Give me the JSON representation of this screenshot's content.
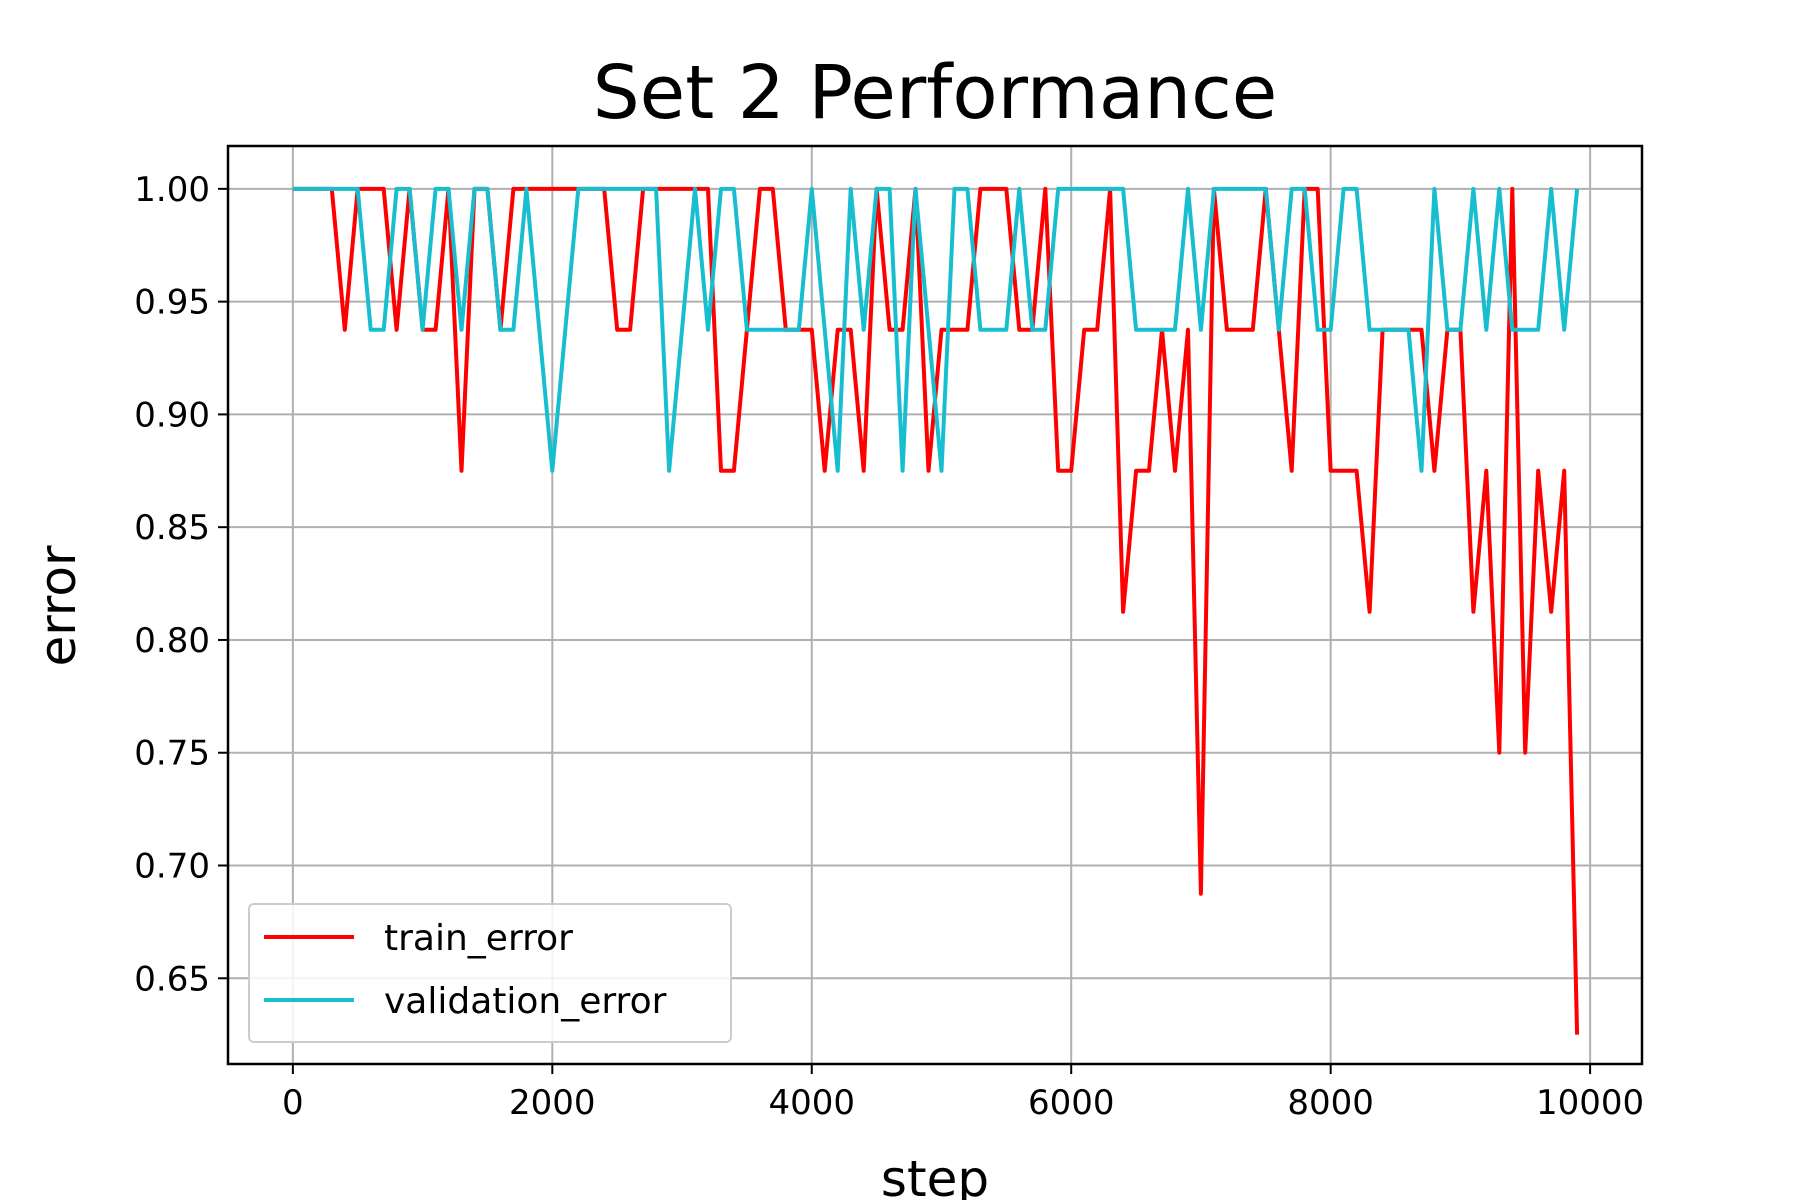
{
  "chart_data": {
    "type": "line",
    "title": "Set 2 Performance",
    "xlabel": "step",
    "ylabel": "error",
    "xlim": [
      -500,
      10400
    ],
    "ylim": [
      0.612,
      1.019
    ],
    "xticks": [
      0,
      2000,
      4000,
      6000,
      8000,
      10000
    ],
    "xtick_labels": [
      "0",
      "2000",
      "4000",
      "6000",
      "8000",
      "10000"
    ],
    "yticks": [
      0.65,
      0.7,
      0.75,
      0.8,
      0.85,
      0.9,
      0.95,
      1.0
    ],
    "ytick_labels": [
      "0.65",
      "0.70",
      "0.75",
      "0.80",
      "0.85",
      "0.90",
      "0.95",
      "1.00"
    ],
    "grid": true,
    "legend_position": "lower-left",
    "x": [
      0,
      100,
      200,
      300,
      400,
      500,
      600,
      700,
      800,
      900,
      1000,
      1100,
      1200,
      1300,
      1400,
      1500,
      1600,
      1700,
      1800,
      1900,
      2000,
      2100,
      2200,
      2300,
      2400,
      2500,
      2600,
      2700,
      2800,
      2900,
      3000,
      3100,
      3200,
      3300,
      3400,
      3500,
      3600,
      3700,
      3800,
      3900,
      4000,
      4100,
      4200,
      4300,
      4400,
      4500,
      4600,
      4700,
      4800,
      4900,
      5000,
      5100,
      5200,
      5300,
      5400,
      5500,
      5600,
      5700,
      5800,
      5900,
      6000,
      6100,
      6200,
      6300,
      6400,
      6500,
      6600,
      6700,
      6800,
      6900,
      7000,
      7100,
      7200,
      7300,
      7400,
      7500,
      7600,
      7700,
      7800,
      7900,
      8000,
      8100,
      8200,
      8300,
      8400,
      8500,
      8600,
      8700,
      8800,
      8900,
      9000,
      9100,
      9200,
      9300,
      9400,
      9500,
      9600,
      9700,
      9800,
      9900
    ],
    "series": [
      {
        "name": "train_error",
        "color": "#ff0000",
        "values": [
          1.0,
          1.0,
          1.0,
          1.0,
          0.9375,
          1.0,
          1.0,
          1.0,
          0.9375,
          1.0,
          0.9375,
          0.9375,
          1.0,
          0.875,
          1.0,
          1.0,
          0.9375,
          1.0,
          1.0,
          1.0,
          1.0,
          1.0,
          1.0,
          1.0,
          1.0,
          0.9375,
          0.9375,
          1.0,
          1.0,
          1.0,
          1.0,
          1.0,
          1.0,
          0.875,
          0.875,
          0.9375,
          1.0,
          1.0,
          0.9375,
          0.9375,
          0.9375,
          0.875,
          0.9375,
          0.9375,
          0.875,
          1.0,
          0.9375,
          0.9375,
          1.0,
          0.875,
          0.9375,
          0.9375,
          0.9375,
          1.0,
          1.0,
          1.0,
          0.9375,
          0.9375,
          1.0,
          0.875,
          0.875,
          0.9375,
          0.9375,
          1.0,
          0.8125,
          0.875,
          0.875,
          0.9375,
          0.875,
          0.9375,
          0.6875,
          1.0,
          0.9375,
          0.9375,
          0.9375,
          1.0,
          0.9375,
          0.875,
          1.0,
          1.0,
          0.875,
          0.875,
          0.875,
          0.8125,
          0.9375,
          0.9375,
          0.9375,
          0.9375,
          0.875,
          0.9375,
          0.9375,
          0.8125,
          0.875,
          0.75,
          1.0,
          0.75,
          0.875,
          0.8125,
          0.875,
          0.625
        ]
      },
      {
        "name": "validation_error",
        "color": "#17becf",
        "values": [
          1.0,
          1.0,
          1.0,
          1.0,
          1.0,
          1.0,
          0.9375,
          0.9375,
          1.0,
          1.0,
          0.9375,
          1.0,
          1.0,
          0.9375,
          1.0,
          1.0,
          0.9375,
          0.9375,
          1.0,
          0.9375,
          0.875,
          0.9375,
          1.0,
          1.0,
          1.0,
          1.0,
          1.0,
          1.0,
          1.0,
          0.875,
          0.9375,
          1.0,
          0.9375,
          1.0,
          1.0,
          0.9375,
          0.9375,
          0.9375,
          0.9375,
          0.9375,
          1.0,
          0.9375,
          0.875,
          1.0,
          0.9375,
          1.0,
          1.0,
          0.875,
          1.0,
          0.9375,
          0.875,
          1.0,
          1.0,
          0.9375,
          0.9375,
          0.9375,
          1.0,
          0.9375,
          0.9375,
          1.0,
          1.0,
          1.0,
          1.0,
          1.0,
          1.0,
          0.9375,
          0.9375,
          0.9375,
          0.9375,
          1.0,
          0.9375,
          1.0,
          1.0,
          1.0,
          1.0,
          1.0,
          0.9375,
          1.0,
          1.0,
          0.9375,
          0.9375,
          1.0,
          1.0,
          0.9375,
          0.9375,
          0.9375,
          0.9375,
          0.875,
          1.0,
          0.9375,
          0.9375,
          1.0,
          0.9375,
          1.0,
          0.9375,
          0.9375,
          0.9375,
          1.0,
          0.9375,
          1.0
        ]
      }
    ]
  }
}
